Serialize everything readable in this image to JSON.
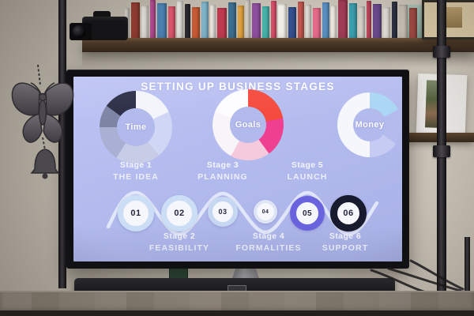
{
  "slide": {
    "title": "SETTING UP BUSINESS STAGES",
    "background_color": "#b3bbee",
    "title_color": "#fdfdff",
    "donuts": [
      {
        "label": "Time"
      },
      {
        "label": "Goals"
      },
      {
        "label": "Money"
      }
    ],
    "stages": [
      {
        "stage_label": "Stage 1",
        "stage_name": "THE IDEA",
        "number": "01",
        "ring_color": "#cbdef6",
        "ring_width": 7,
        "size": 46
      },
      {
        "stage_label": "Stage 2",
        "stage_name": "FEASIBILITY",
        "number": "02",
        "ring_color": "#cbdef6",
        "ring_width": 7,
        "size": 46
      },
      {
        "stage_label": "Stage 3",
        "stage_name": "PLANNING",
        "number": "03",
        "ring_color": "#c6d7f2",
        "ring_width": 6,
        "size": 38
      },
      {
        "stage_label": "Stage 4",
        "stage_name": "FORMALITIES",
        "number": "04",
        "ring_color": "#dde4f6",
        "ring_width": 4,
        "size": 30
      },
      {
        "stage_label": "Stage 5",
        "stage_name": "LAUNCH",
        "number": "05",
        "ring_color": "#6a63de",
        "ring_width": 8,
        "size": 44
      },
      {
        "stage_label": "Stage 6",
        "stage_name": "SUPPORT",
        "number": "06",
        "ring_color": "#181a2e",
        "ring_width": 9,
        "size": 46
      }
    ]
  },
  "chart_data": [
    {
      "type": "pie",
      "title": "Time",
      "center_label": "Time",
      "hole": 0.52,
      "segments": [
        {
          "color": "#f3f5fa",
          "pct": 18
        },
        {
          "color": "#cfd7f4",
          "pct": 21
        },
        {
          "color": "#c7cce7",
          "pct": 20
        },
        {
          "color": "#a9b0d4",
          "pct": 16
        },
        {
          "color": "#7e84a4",
          "pct": 10
        },
        {
          "color": "#2c2e46",
          "pct": 15
        }
      ]
    },
    {
      "type": "pie",
      "title": "Goals",
      "center_label": "Goals",
      "hole": 0.52,
      "segments": [
        {
          "color": "#f5493c",
          "pct": 22
        },
        {
          "color": "#ef3f90",
          "pct": 18
        },
        {
          "color": "#f5cadc",
          "pct": 18
        },
        {
          "color": "#f8f5f9",
          "pct": 23
        },
        {
          "color": "#fdfcfe",
          "pct": 19
        }
      ]
    },
    {
      "type": "pie",
      "title": "Money",
      "center_label": "Money",
      "hole": 0.52,
      "segments": [
        {
          "color": "#aad6f4",
          "pct": 17
        },
        {
          "color": "#b4bcee",
          "pct": 18
        },
        {
          "color": "#c5cbf2",
          "pct": 15
        },
        {
          "color": "#f5f7fd",
          "pct": 50
        }
      ]
    }
  ],
  "scene": {
    "bookshelf": {
      "spine_colors": [
        "#cdc8c2",
        "#8e3a31",
        "#d9d4cf",
        "#b14b8f",
        "#4a7fae",
        "#d9556a",
        "#e0dcd6",
        "#2a2a2e",
        "#c75a35",
        "#7fb3c9",
        "#e8e4df",
        "#bf3a4e",
        "#3b6e8f",
        "#e3a23f",
        "#d5cfc8",
        "#8e4f9e",
        "#46b3a9",
        "#d94f6a",
        "#f0ece6",
        "#35508f",
        "#c2574f",
        "#ded9d2",
        "#e56a8a",
        "#5a8fc0",
        "#efe9e2",
        "#a03c55",
        "#3a9fae",
        "#d8d2cb",
        "#c4485e",
        "#6a4a8e",
        "#e2ddd6",
        "#2e3242",
        "#c9c0b4",
        "#9f4a42"
      ]
    }
  }
}
